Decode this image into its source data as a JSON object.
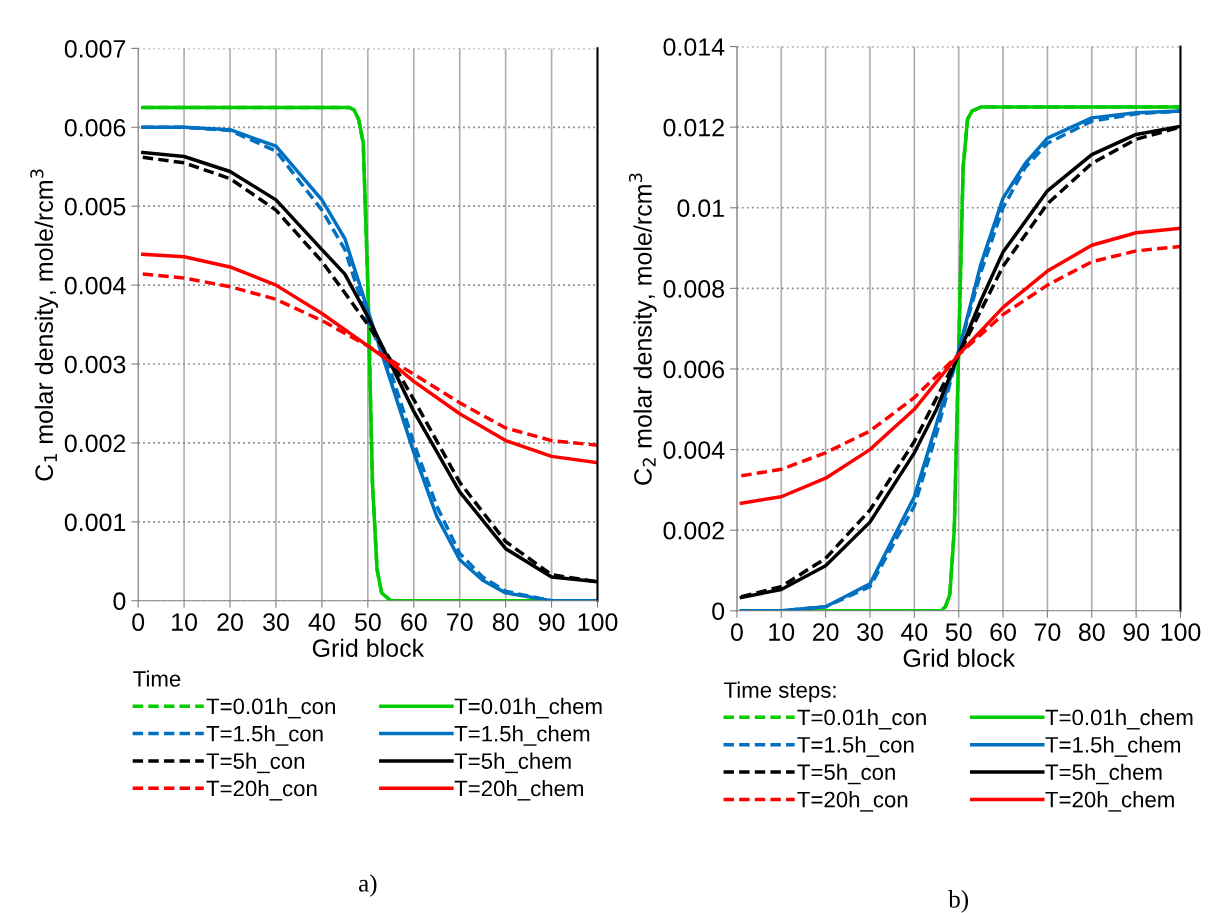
{
  "chart_data": [
    {
      "type": "line",
      "xlabel": "Grid block",
      "ylabel": "C$_{1}$ molar density, mole/rcm$^{3}$",
      "legend_title": "Time",
      "xlim": [
        0,
        100
      ],
      "xticks": [
        0,
        10,
        20,
        30,
        40,
        50,
        60,
        70,
        80,
        90,
        100
      ],
      "ylim": [
        0,
        0.007
      ],
      "yticks": [
        0,
        0.001,
        0.002,
        0.003,
        0.004,
        0.005,
        0.006,
        0.007
      ],
      "grid": true,
      "legend": "bottom",
      "annotations": [
        "a)"
      ],
      "series": [
        {
          "name": "T=0.01h_con",
          "color": "#00cc00",
          "line_style": "dashed",
          "x": [
            1,
            10,
            20,
            30,
            40,
            46,
            47,
            48,
            49,
            50,
            51,
            52,
            53,
            55,
            70,
            100
          ],
          "values": [
            0.00625,
            0.00625,
            0.00625,
            0.00625,
            0.00625,
            0.00625,
            0.00622,
            0.0061,
            0.0058,
            0.004,
            0.0015,
            0.0004,
            0.0001,
            0,
            0,
            0
          ]
        },
        {
          "name": "T=0.01h_chem",
          "color": "#00cc00",
          "line_style": "solid",
          "x": [
            1,
            10,
            20,
            30,
            40,
            46,
            47,
            48,
            49,
            50,
            51,
            52,
            53,
            55,
            70,
            100
          ],
          "values": [
            0.00625,
            0.00625,
            0.00625,
            0.00625,
            0.00625,
            0.00625,
            0.00622,
            0.0061,
            0.0058,
            0.004,
            0.0015,
            0.0004,
            0.0001,
            0,
            0,
            0
          ]
        },
        {
          "name": "T=1.5h_con",
          "color": "#0070c0",
          "line_style": "dashed",
          "x": [
            1,
            10,
            20,
            30,
            40,
            45,
            50,
            55,
            60,
            65,
            70,
            75,
            80,
            90,
            100
          ],
          "values": [
            0.006,
            0.006,
            0.00596,
            0.0057,
            0.00495,
            0.00445,
            0.00355,
            0.0029,
            0.002,
            0.0012,
            0.0006,
            0.0003,
            0.00012,
            0,
            0
          ]
        },
        {
          "name": "T=1.5h_chem",
          "color": "#0070c0",
          "line_style": "solid",
          "x": [
            1,
            10,
            20,
            30,
            40,
            45,
            50,
            55,
            60,
            65,
            70,
            75,
            80,
            90,
            100
          ],
          "values": [
            0.006,
            0.006,
            0.00597,
            0.00576,
            0.00508,
            0.00459,
            0.00368,
            0.00278,
            0.00188,
            0.00107,
            0.00052,
            0.00026,
            0.0001,
            0,
            0
          ]
        },
        {
          "name": "T=5h_con",
          "color": "#000000",
          "line_style": "dashed",
          "x": [
            1,
            10,
            20,
            30,
            40,
            50,
            55,
            60,
            70,
            80,
            90,
            100
          ],
          "values": [
            0.00562,
            0.00555,
            0.00535,
            0.00495,
            0.0043,
            0.0035,
            0.00305,
            0.00255,
            0.0015,
            0.00075,
            0.00033,
            0.00024
          ]
        },
        {
          "name": "T=5h_chem",
          "color": "#000000",
          "line_style": "solid",
          "x": [
            1,
            10,
            20,
            30,
            40,
            45,
            50,
            55,
            60,
            70,
            80,
            90,
            100
          ],
          "values": [
            0.00568,
            0.00563,
            0.00544,
            0.00508,
            0.00445,
            0.00414,
            0.0036,
            0.003,
            0.0024,
            0.00138,
            0.00066,
            0.0003,
            0.00024
          ]
        },
        {
          "name": "T=20h_con",
          "color": "#ff0000",
          "line_style": "dashed",
          "x": [
            1,
            10,
            20,
            30,
            40,
            50,
            60,
            70,
            80,
            90,
            100
          ],
          "values": [
            0.00414,
            0.00409,
            0.00398,
            0.00382,
            0.00355,
            0.00323,
            0.00287,
            0.00251,
            0.00219,
            0.00203,
            0.00197
          ]
        },
        {
          "name": "T=20h_chem",
          "color": "#ff0000",
          "line_style": "solid",
          "x": [
            1,
            10,
            20,
            30,
            40,
            50,
            55,
            60,
            70,
            80,
            90,
            100
          ],
          "values": [
            0.00439,
            0.00436,
            0.00423,
            0.004,
            0.00364,
            0.00323,
            0.00302,
            0.00278,
            0.00237,
            0.00203,
            0.00183,
            0.00175
          ]
        }
      ]
    },
    {
      "type": "line",
      "xlabel": "Grid block",
      "ylabel": "C$_{2}$ molar density, mole/rcm$^{3}$",
      "legend_title": "Time steps:",
      "xlim": [
        0,
        100
      ],
      "xticks": [
        0,
        10,
        20,
        30,
        40,
        50,
        60,
        70,
        80,
        90,
        100
      ],
      "ylim": [
        0,
        0.014
      ],
      "yticks": [
        0,
        0.002,
        0.004,
        0.006,
        0.008,
        0.01,
        0.012,
        0.014
      ],
      "grid": true,
      "legend": "bottom",
      "annotations": [
        "b)"
      ],
      "series": [
        {
          "name": "T=0.01h_con",
          "color": "#00cc00",
          "line_style": "dashed",
          "x": [
            1,
            10,
            20,
            30,
            40,
            46,
            47,
            48,
            49,
            50,
            51,
            52,
            53,
            55,
            70,
            100
          ],
          "values": [
            0,
            0,
            0,
            0,
            0,
            0,
            0.0001,
            0.0004,
            0.002,
            0.0065,
            0.011,
            0.0122,
            0.0124,
            0.0125,
            0.0125,
            0.0125
          ]
        },
        {
          "name": "T=0.01h_chem",
          "color": "#00cc00",
          "line_style": "solid",
          "x": [
            1,
            10,
            20,
            30,
            40,
            46,
            47,
            48,
            49,
            50,
            51,
            52,
            53,
            55,
            70,
            100
          ],
          "values": [
            0,
            0,
            0,
            0,
            0,
            0,
            0.0001,
            0.0004,
            0.002,
            0.0065,
            0.011,
            0.0122,
            0.0124,
            0.0125,
            0.0125,
            0.0125
          ]
        },
        {
          "name": "T=1.5h_con",
          "color": "#0070c0",
          "line_style": "dashed",
          "x": [
            1,
            10,
            20,
            30,
            40,
            45,
            50,
            55,
            60,
            65,
            70,
            80,
            90,
            100
          ],
          "values": [
            0,
            0,
            0.0001,
            0.0006,
            0.0026,
            0.0044,
            0.00645,
            0.0084,
            0.01,
            0.011,
            0.0116,
            0.01215,
            0.01233,
            0.0124
          ]
        },
        {
          "name": "T=1.5h_chem",
          "color": "#0070c0",
          "line_style": "solid",
          "x": [
            1,
            10,
            20,
            30,
            40,
            45,
            50,
            55,
            60,
            65,
            70,
            80,
            90,
            100
          ],
          "values": [
            0,
            0,
            0.0001,
            0.00067,
            0.00283,
            0.00464,
            0.00645,
            0.0086,
            0.01024,
            0.0111,
            0.01173,
            0.01223,
            0.01236,
            0.0124
          ]
        },
        {
          "name": "T=5h_con",
          "color": "#000000",
          "line_style": "dashed",
          "x": [
            1,
            10,
            20,
            30,
            40,
            50,
            55,
            60,
            70,
            80,
            90,
            100
          ],
          "values": [
            0.00035,
            0.0006,
            0.0013,
            0.0025,
            0.0042,
            0.00636,
            0.00745,
            0.00855,
            0.0101,
            0.0111,
            0.0117,
            0.012
          ]
        },
        {
          "name": "T=5h_chem",
          "color": "#000000",
          "line_style": "solid",
          "x": [
            1,
            10,
            20,
            30,
            40,
            45,
            50,
            55,
            60,
            70,
            80,
            90,
            100
          ],
          "values": [
            0.00033,
            0.00053,
            0.00112,
            0.0022,
            0.00392,
            0.005,
            0.00636,
            0.0077,
            0.0089,
            0.01042,
            0.01132,
            0.01182,
            0.01202
          ]
        },
        {
          "name": "T=20h_con",
          "color": "#ff0000",
          "line_style": "dashed",
          "x": [
            1,
            10,
            20,
            30,
            40,
            50,
            60,
            70,
            80,
            90,
            100
          ],
          "values": [
            0.00335,
            0.00351,
            0.00392,
            0.00446,
            0.00529,
            0.00636,
            0.00735,
            0.00808,
            0.00866,
            0.00893,
            0.00904
          ]
        },
        {
          "name": "T=20h_chem",
          "color": "#ff0000",
          "line_style": "solid",
          "x": [
            1,
            10,
            20,
            30,
            40,
            50,
            60,
            70,
            80,
            90,
            100
          ],
          "values": [
            0.00267,
            0.00283,
            0.00329,
            0.004,
            0.005,
            0.00636,
            0.00753,
            0.00843,
            0.00907,
            0.00938,
            0.00949
          ]
        }
      ]
    }
  ]
}
